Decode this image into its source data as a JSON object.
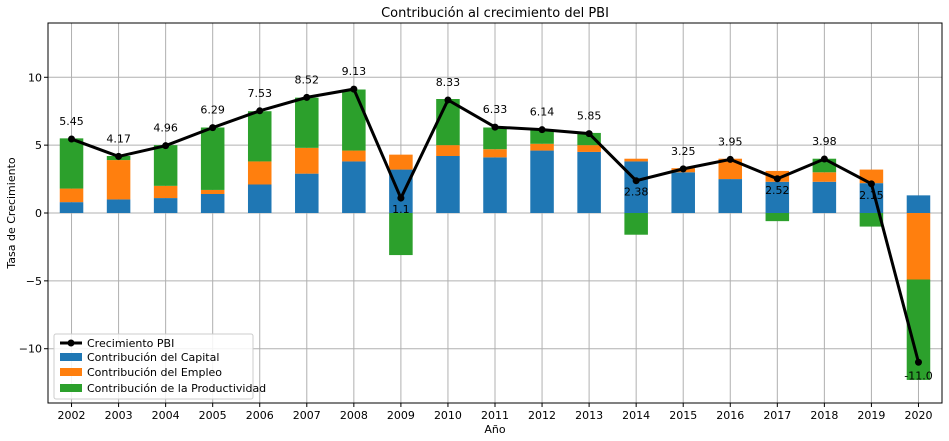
{
  "chart_data": {
    "type": "bar",
    "title": "Contribución al crecimiento del PBI",
    "xlabel": "Año",
    "ylabel": "Tasa de Crecimiento",
    "ylim": [
      -14,
      14
    ],
    "yticks": [
      -10,
      -5,
      0,
      5,
      10
    ],
    "grid": true,
    "legend_position": "bottom-left",
    "categories": [
      "2002",
      "2003",
      "2004",
      "2005",
      "2006",
      "2007",
      "2008",
      "2009",
      "2010",
      "2011",
      "2012",
      "2013",
      "2014",
      "2015",
      "2016",
      "2017",
      "2018",
      "2019",
      "2020"
    ],
    "stacked_series": [
      {
        "name": "Contribución del Capital",
        "color": "#1f77b4",
        "values": [
          0.8,
          1.0,
          1.1,
          1.4,
          2.1,
          2.9,
          3.8,
          3.2,
          4.2,
          4.1,
          4.6,
          4.5,
          3.8,
          3.0,
          2.5,
          2.3,
          2.3,
          2.2,
          1.3
        ]
      },
      {
        "name": "Contribución del Empleo",
        "color": "#ff7f0e",
        "values": [
          1.0,
          2.9,
          0.9,
          0.3,
          1.7,
          1.9,
          0.8,
          1.1,
          0.8,
          0.6,
          0.5,
          0.5,
          0.2,
          0.3,
          1.5,
          0.8,
          0.7,
          1.0,
          -4.9
        ]
      },
      {
        "name": "Contribución de la Productividad",
        "color": "#2ca02c",
        "values": [
          3.7,
          0.3,
          3.0,
          4.6,
          3.7,
          3.7,
          4.5,
          -3.1,
          3.4,
          1.6,
          1.0,
          0.9,
          -1.6,
          0.0,
          0.0,
          -0.6,
          1.0,
          -1.0,
          -7.4
        ]
      }
    ],
    "line_series": {
      "name": "Crecimiento PBI",
      "color": "#000000",
      "values": [
        5.45,
        4.17,
        4.96,
        6.29,
        7.53,
        8.52,
        9.13,
        1.1,
        8.33,
        6.33,
        6.14,
        5.85,
        2.38,
        3.25,
        3.95,
        2.52,
        3.98,
        2.15,
        -11.0
      ],
      "labels": [
        "5.45",
        "4.17",
        "4.96",
        "6.29",
        "7.53",
        "8.52",
        "9.13",
        "1.1",
        "8.33",
        "6.33",
        "6.14",
        "5.85",
        "2.38",
        "3.25",
        "3.95",
        "2.52",
        "3.98",
        "2.15",
        "-11.0"
      ]
    },
    "legend": [
      "Crecimiento PBI",
      "Contribución del Capital",
      "Contribución del Empleo",
      "Contribución de la Productividad"
    ]
  }
}
